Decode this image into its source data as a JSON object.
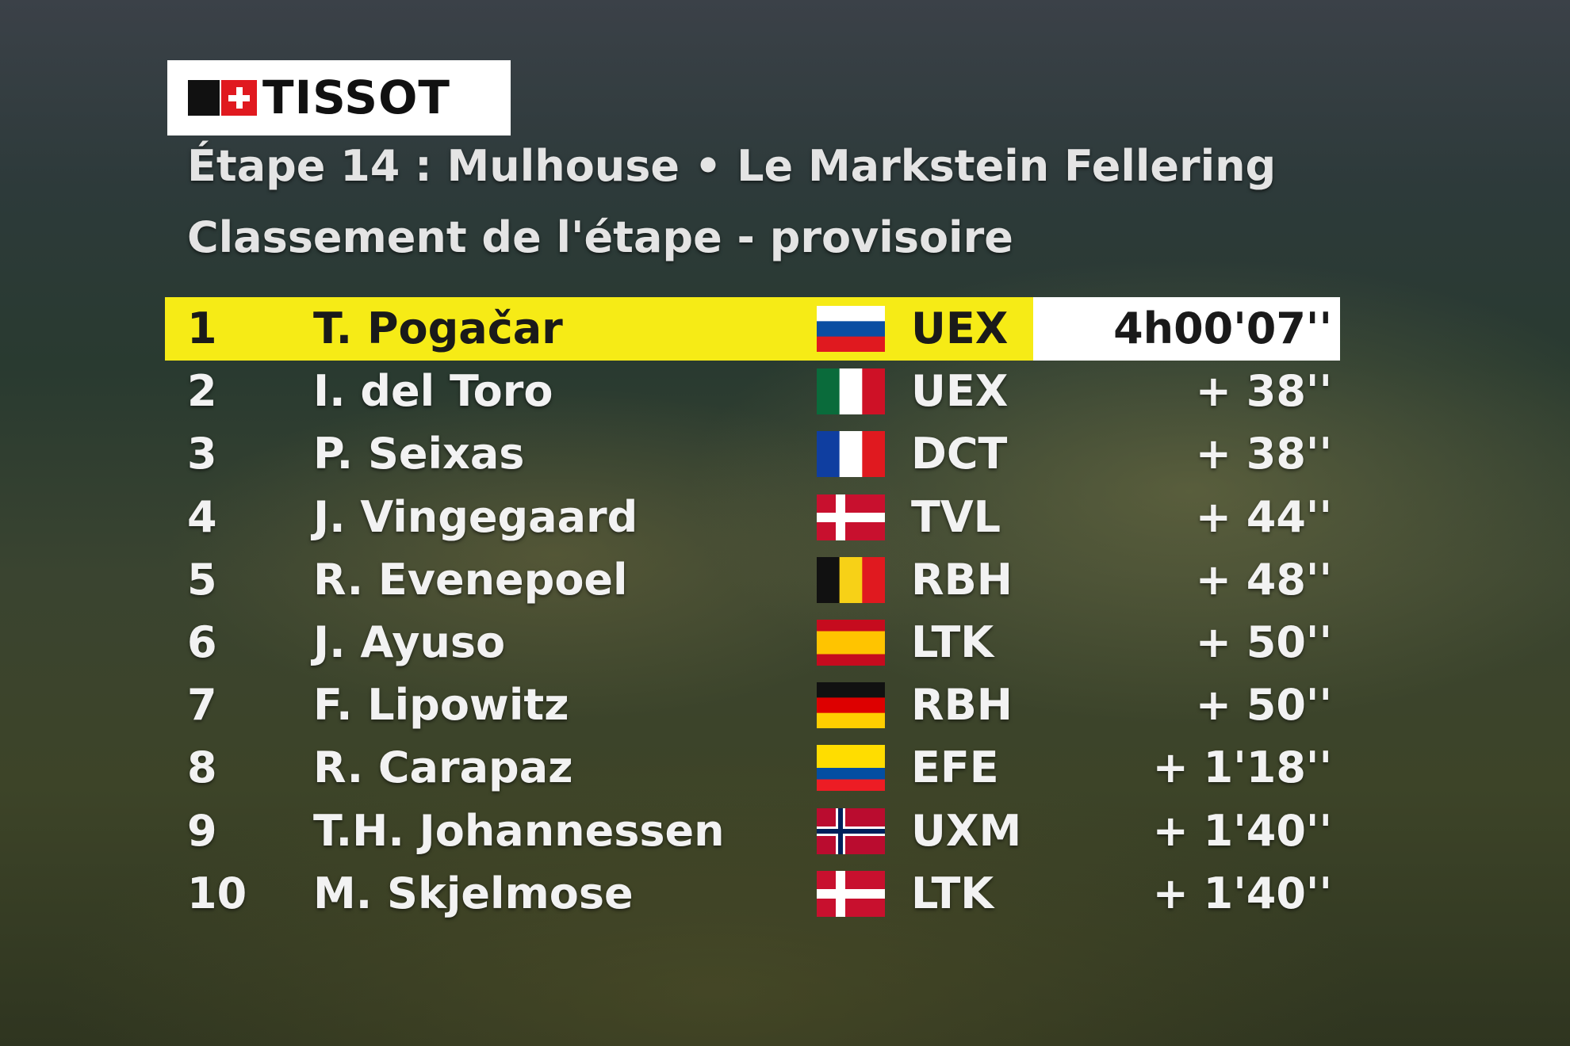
{
  "header": {
    "brand": "TISSOT",
    "title": "Étape 14 : Mulhouse • Le Markstein Fellering",
    "subtitle": "Classement de l'étape - provisoire"
  },
  "table": {
    "rows": [
      {
        "rank": "1",
        "name": "T. Pogačar",
        "team": "UEX",
        "time": "4h00'07''"
      },
      {
        "rank": "2",
        "name": "I. del Toro",
        "team": "UEX",
        "time": "+ 38''"
      },
      {
        "rank": "3",
        "name": "P. Seixas",
        "team": "DCT",
        "time": "+ 38''"
      },
      {
        "rank": "4",
        "name": "J. Vingegaard",
        "team": "TVL",
        "time": "+ 44''"
      },
      {
        "rank": "5",
        "name": "R. Evenepoel",
        "team": "RBH",
        "time": "+ 48''"
      },
      {
        "rank": "6",
        "name": "J. Ayuso",
        "team": "LTK",
        "time": "+ 50''"
      },
      {
        "rank": "7",
        "name": "F. Lipowitz",
        "team": "RBH",
        "time": "+ 50''"
      },
      {
        "rank": "8",
        "name": "R. Carapaz",
        "team": "EFE",
        "time": "+ 1'18''"
      },
      {
        "rank": "9",
        "name": "T.H. Johannessen",
        "team": "UXM",
        "time": "+ 1'40''"
      },
      {
        "rank": "10",
        "name": "M. Skjelmose",
        "team": "LTK",
        "time": "+ 1'40''"
      }
    ]
  }
}
